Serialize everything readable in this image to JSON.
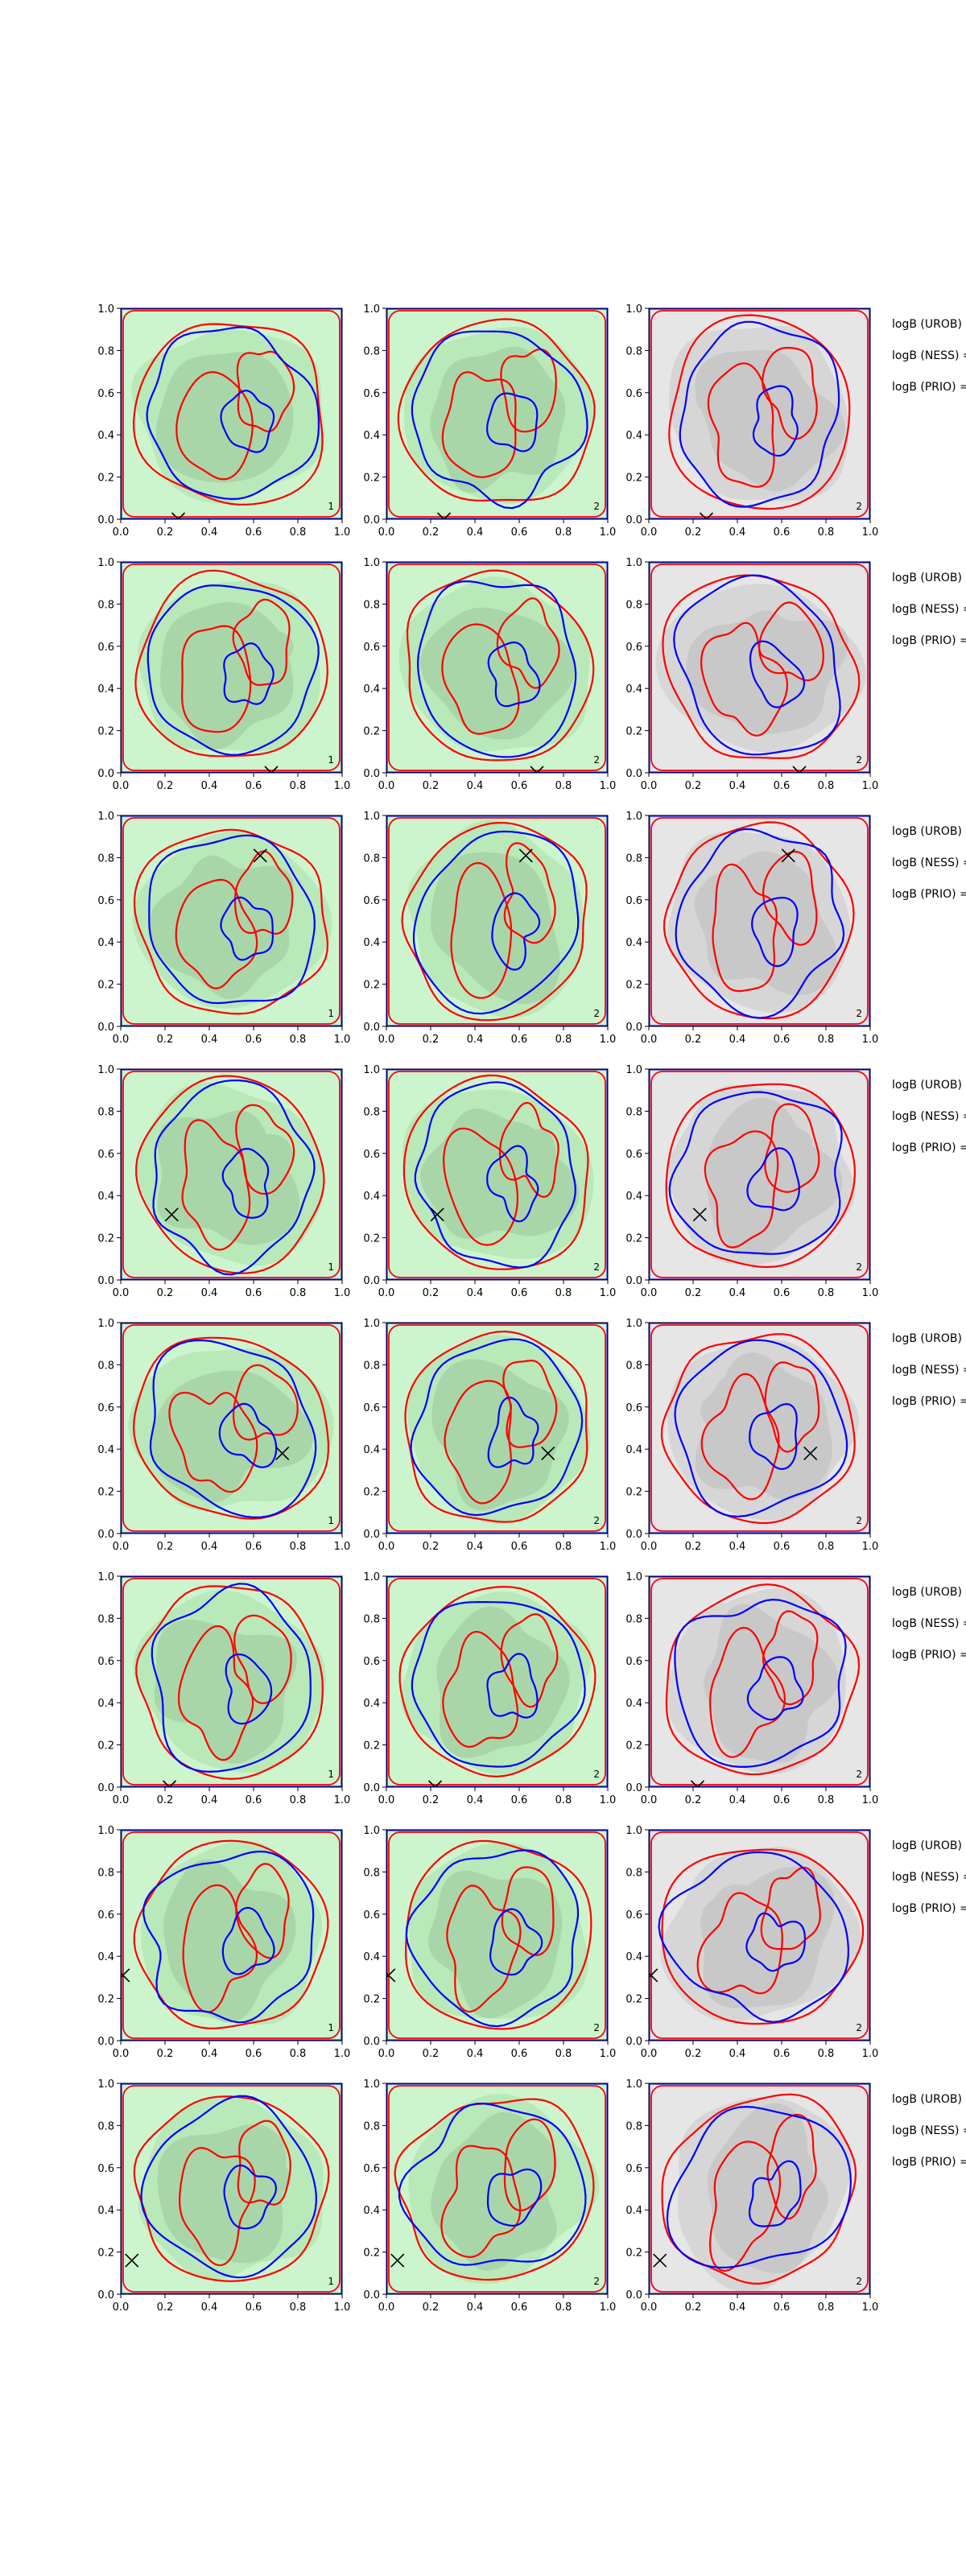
{
  "chart_data": {
    "type": "contour",
    "layout": {
      "rows": 8,
      "cols": 3
    },
    "xlim": [
      0,
      1
    ],
    "ylim": [
      0,
      1
    ],
    "xticks": [
      "0.0",
      "0.2",
      "0.4",
      "0.6",
      "0.8",
      "1.0"
    ],
    "yticks": [
      "0.0",
      "0.2",
      "0.4",
      "0.6",
      "0.8",
      "1.0"
    ],
    "columns": [
      {
        "fill": "green",
        "corner_label": "1"
      },
      {
        "fill": "green",
        "corner_label": "2"
      },
      {
        "fill": "gray",
        "corner_label": "2"
      }
    ],
    "row_labels": [
      "logB (UROB) =",
      "logB (NESS) =",
      "logB (PRIO) ="
    ],
    "colors": {
      "blue_contour": "#0000ff",
      "red_contour": "#ff0000",
      "green_light": "#cdf5cd",
      "green_mid": "#b9e8b9",
      "green_dark": "#a9d6a9",
      "gray_light": "#e6e6e6",
      "gray_mid": "#d6d6d6",
      "gray_dark": "#c8c8c8"
    },
    "markers": [
      {
        "row": 1,
        "x": 0.26,
        "y": 0.0
      },
      {
        "row": 2,
        "x": 0.68,
        "y": 0.0
      },
      {
        "row": 3,
        "x": 0.63,
        "y": 0.81
      },
      {
        "row": 4,
        "x": 0.23,
        "y": 0.31
      },
      {
        "row": 5,
        "x": 0.73,
        "y": 0.38
      },
      {
        "row": 6,
        "x": 0.22,
        "y": 0.0
      },
      {
        "row": 7,
        "x": 0.01,
        "y": 0.31
      },
      {
        "row": 8,
        "x": 0.05,
        "y": 0.16
      }
    ]
  }
}
